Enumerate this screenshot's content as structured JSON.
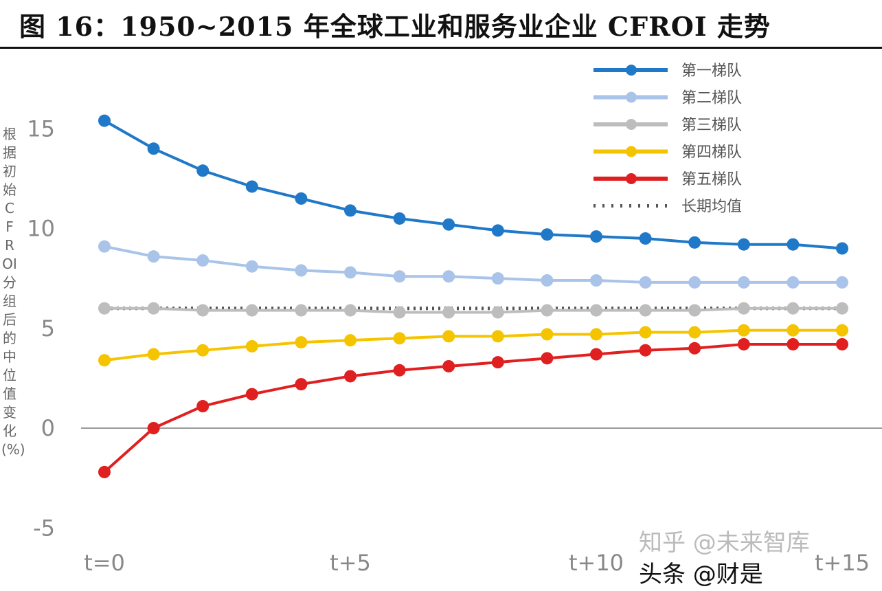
{
  "figure_title": "图 16：1950~2015 年全球工业和服务业企业 CFROI 走势",
  "watermarks": [
    "知乎 @未来智库",
    "头条 @财是"
  ],
  "chart_data": {
    "type": "line",
    "title": "",
    "ylabel": "根据初始CFROI分组后的中位值变化(%)",
    "xlabel": "",
    "x": [
      "t=0",
      "t+1",
      "t+2",
      "t+3",
      "t+4",
      "t+5",
      "t+6",
      "t+7",
      "t+8",
      "t+9",
      "t+10",
      "t+11",
      "t+12",
      "t+13",
      "t+14",
      "t+15"
    ],
    "x_tick_labels": [
      "t=0",
      "t+5",
      "t+10",
      "t+15"
    ],
    "y_tick_labels": [
      "-5",
      "0",
      "5",
      "10",
      "15"
    ],
    "ylim": [
      -6.5,
      17
    ],
    "grid": false,
    "legend_position": "top-right",
    "series": [
      {
        "name": "第一梯队",
        "color": "#1f78c8",
        "values": [
          15.4,
          14.0,
          12.9,
          12.1,
          11.5,
          10.9,
          10.5,
          10.2,
          9.9,
          9.7,
          9.6,
          9.5,
          9.3,
          9.2,
          9.2,
          9.0
        ]
      },
      {
        "name": "第二梯队",
        "color": "#a9c4e8",
        "values": [
          9.1,
          8.6,
          8.4,
          8.1,
          7.9,
          7.8,
          7.6,
          7.6,
          7.5,
          7.4,
          7.4,
          7.3,
          7.3,
          7.3,
          7.3,
          7.3
        ]
      },
      {
        "name": "第三梯队",
        "color": "#bdbdbd",
        "values": [
          6.0,
          6.0,
          5.9,
          5.9,
          5.9,
          5.9,
          5.8,
          5.8,
          5.8,
          5.9,
          5.9,
          5.9,
          5.9,
          6.0,
          6.0,
          6.0
        ]
      },
      {
        "name": "第四梯队",
        "color": "#f5c400",
        "values": [
          3.4,
          3.7,
          3.9,
          4.1,
          4.3,
          4.4,
          4.5,
          4.6,
          4.6,
          4.7,
          4.7,
          4.8,
          4.8,
          4.9,
          4.9,
          4.9
        ]
      },
      {
        "name": "第五梯队",
        "color": "#e02020",
        "values": [
          -2.2,
          0.0,
          1.1,
          1.7,
          2.2,
          2.6,
          2.9,
          3.1,
          3.3,
          3.5,
          3.7,
          3.9,
          4.0,
          4.2,
          4.2,
          4.2
        ]
      }
    ],
    "reference_line": {
      "name": "长期均值",
      "value": 6.0,
      "color": "#555555",
      "style": "dotted"
    }
  }
}
